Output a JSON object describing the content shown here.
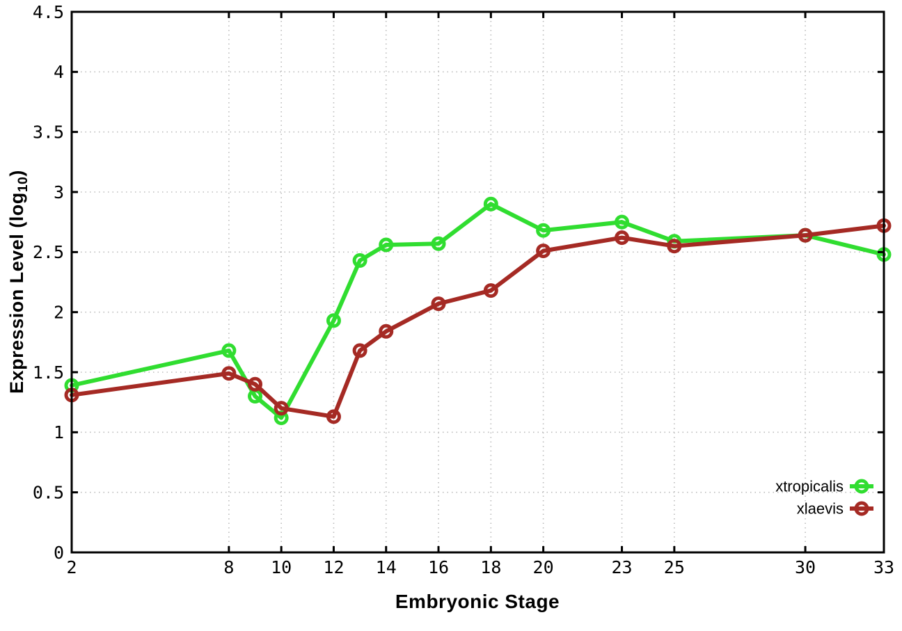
{
  "chart_data": {
    "type": "line",
    "title": "",
    "xlabel": "Embryonic Stage",
    "ylabel": "Expression Level (log10)",
    "ylabel_prefix": "Expression Level (log",
    "ylabel_sub": "10",
    "ylabel_suffix": ")",
    "x": [
      2,
      8,
      9,
      10,
      12,
      13,
      14,
      16,
      18,
      20,
      23,
      25,
      30,
      33
    ],
    "xlim": [
      2,
      33
    ],
    "ylim": [
      0,
      4.5
    ],
    "xtick_values": [
      2,
      8,
      10,
      12,
      14,
      16,
      18,
      20,
      23,
      25,
      30,
      33
    ],
    "xtick_labels": [
      "2",
      "8",
      "10",
      "12",
      "14",
      "16",
      "18",
      "20",
      "23",
      "25",
      "30",
      "33"
    ],
    "ytick_values": [
      0,
      0.5,
      1,
      1.5,
      2,
      2.5,
      3,
      3.5,
      4,
      4.5
    ],
    "ytick_labels": [
      "0",
      "0.5",
      "1",
      "1.5",
      "2",
      "2.5",
      "3",
      "3.5",
      "4",
      "4.5"
    ],
    "grid": true,
    "legend_position": "inside-bottom-right",
    "series": [
      {
        "name": "xtropicalis",
        "color": "#30dd30",
        "marker": "open-circle",
        "values": [
          1.39,
          1.68,
          1.3,
          1.12,
          1.93,
          2.43,
          2.56,
          2.57,
          2.9,
          2.68,
          2.75,
          2.59,
          2.64,
          2.48
        ]
      },
      {
        "name": "xlaevis",
        "color": "#a52a24",
        "marker": "open-circle",
        "values": [
          1.31,
          1.49,
          1.4,
          1.2,
          1.13,
          1.68,
          1.84,
          2.07,
          2.18,
          2.51,
          2.62,
          2.55,
          2.64,
          2.72
        ]
      }
    ],
    "colors": {
      "grid": "#bbbbbb",
      "axis": "#000000",
      "background": "#ffffff"
    }
  }
}
